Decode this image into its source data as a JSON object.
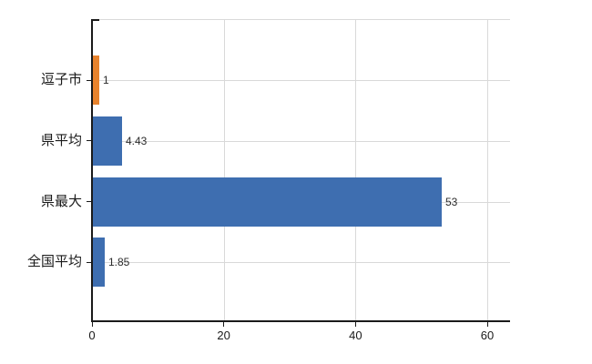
{
  "chart_data": {
    "type": "bar",
    "orientation": "horizontal",
    "title": "",
    "xlabel": "",
    "ylabel": "",
    "categories": [
      "逗子市",
      "県平均",
      "県最大",
      "全国平均"
    ],
    "values": [
      1,
      4.43,
      53,
      1.85
    ],
    "value_labels": [
      "1",
      "4.43",
      "53",
      "1.85"
    ],
    "bar_colors": [
      "#E8832D",
      "#3E6EB0",
      "#3E6EB0",
      "#3E6EB0"
    ],
    "x_ticks": [
      0,
      20,
      40,
      60
    ],
    "x_tick_labels": [
      "0",
      "20",
      "40",
      "60"
    ],
    "xlim": [
      0,
      63.4
    ],
    "grid": true,
    "legend_position": "none"
  },
  "colors": {
    "background": "#ffffff",
    "axis": "#1a1a1a",
    "grid": "#d9d9d9",
    "category_label": "#1a1a1a",
    "value_label": "#2b2b2b",
    "bar_blue": "#3E6EB0",
    "bar_orange": "#E8832D"
  }
}
